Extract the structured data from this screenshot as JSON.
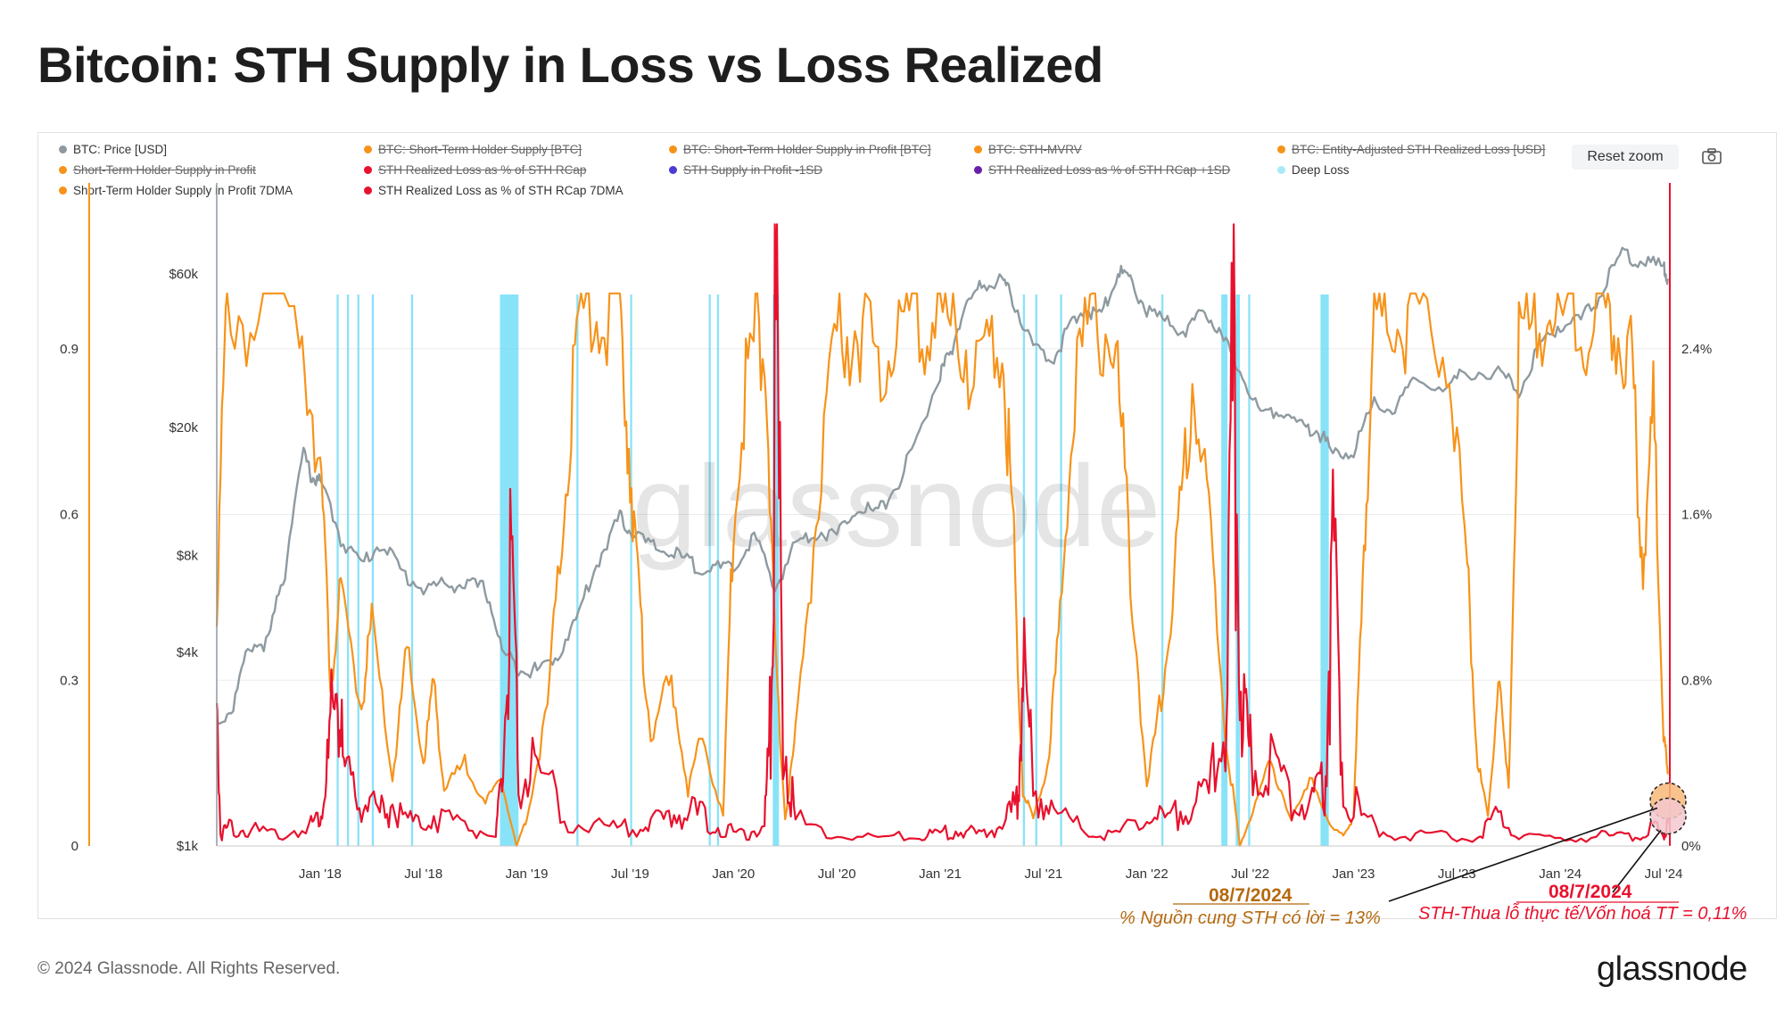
{
  "title": "Bitcoin: STH Supply in Loss vs Loss Realized",
  "reset_label": "Reset zoom",
  "footer": "© 2024 Glassnode. All Rights Reserved.",
  "brand": "glassnode",
  "watermark": "glassnode",
  "colors": {
    "price": "#8e9aa0",
    "orange": "#f7931a",
    "red": "#e8112d",
    "cyan": "#62d9f5",
    "blue": "#4b3bd6",
    "purple": "#6a1fa8",
    "deep": "#a8eafa"
  },
  "legend": [
    {
      "label": "BTC: Price [USD]",
      "color": "#8e9aa0",
      "off": false
    },
    {
      "label": "BTC: Short-Term Holder Supply [BTC]",
      "color": "#f7931a",
      "off": true
    },
    {
      "label": "BTC: Short-Term Holder Supply in Profit [BTC]",
      "color": "#f7931a",
      "off": true
    },
    {
      "label": "BTC: STH-MVRV",
      "color": "#f7931a",
      "off": true
    },
    {
      "label": "BTC: Entity-Adjusted STH Realized Loss [USD]",
      "color": "#f7931a",
      "off": true
    },
    {
      "label": "Short-Term Holder Supply in Profit",
      "color": "#f7931a",
      "off": true
    },
    {
      "label": "STH Realized Loss as % of STH RCap",
      "color": "#e8112d",
      "off": true
    },
    {
      "label": "STH Supply in Profit -1SD",
      "color": "#4b3bd6",
      "off": true
    },
    {
      "label": "STH Realized Loss as % of STH RCap +1SD",
      "color": "#6a1fa8",
      "off": true
    },
    {
      "label": "Deep Loss",
      "color": "#a8eafa",
      "off": false
    },
    {
      "label": "Short-Term Holder Supply in Profit 7DMA",
      "color": "#f7931a",
      "off": false
    },
    {
      "label": "STH Realized Loss as % of STH RCap 7DMA",
      "color": "#e8112d",
      "off": false
    }
  ],
  "annotations": {
    "orange_date": "08/7/2024",
    "orange_text": "% Nguồn cung STH có lời = 13%",
    "red_date": "08/7/2024",
    "red_text": "STH-Thua lỗ thực tế/Vốn hoá TT = 0,11%"
  },
  "chart_data": {
    "type": "line",
    "x_start": 2017.5,
    "x_end": 2024.53,
    "x_ticks": [
      {
        "x": 2018.0,
        "label": "Jan '18"
      },
      {
        "x": 2018.5,
        "label": "Jul '18"
      },
      {
        "x": 2019.0,
        "label": "Jan '19"
      },
      {
        "x": 2019.5,
        "label": "Jul '19"
      },
      {
        "x": 2020.0,
        "label": "Jan '20"
      },
      {
        "x": 2020.5,
        "label": "Jul '20"
      },
      {
        "x": 2021.0,
        "label": "Jan '21"
      },
      {
        "x": 2021.5,
        "label": "Jul '21"
      },
      {
        "x": 2022.0,
        "label": "Jan '22"
      },
      {
        "x": 2022.5,
        "label": "Jul '22"
      },
      {
        "x": 2023.0,
        "label": "Jan '23"
      },
      {
        "x": 2023.5,
        "label": "Jul '23"
      },
      {
        "x": 2024.0,
        "label": "Jan '24"
      },
      {
        "x": 2024.5,
        "label": "Jul '24"
      }
    ],
    "price_axis": {
      "scale": "log",
      "range": [
        1000,
        115000
      ],
      "ticks": [
        {
          "v": 1000,
          "label": "$1k"
        },
        {
          "v": 4000,
          "label": "$4k"
        },
        {
          "v": 8000,
          "label": "$8k"
        },
        {
          "v": 20000,
          "label": "$20k"
        },
        {
          "v": 60000,
          "label": "$60k"
        }
      ]
    },
    "left_axis": {
      "range": [
        0,
        1.2
      ],
      "ticks": [
        {
          "v": 0,
          "label": "0"
        },
        {
          "v": 0.3,
          "label": "0.3"
        },
        {
          "v": 0.6,
          "label": "0.6"
        },
        {
          "v": 0.9,
          "label": "0.9"
        }
      ]
    },
    "right_axis": {
      "range": [
        0,
        3.2
      ],
      "ticks": [
        {
          "v": 0,
          "label": "0%"
        },
        {
          "v": 0.8,
          "label": "0.8%"
        },
        {
          "v": 1.6,
          "label": "1.6%"
        },
        {
          "v": 2.4,
          "label": "2.4%"
        }
      ]
    },
    "series": [
      {
        "name": "BTC: Price [USD]",
        "axis": "price",
        "x": [
          2017.5,
          2017.58,
          2017.66,
          2017.75,
          2017.83,
          2017.92,
          2017.96,
          2018.0,
          2018.1,
          2018.2,
          2018.3,
          2018.4,
          2018.5,
          2018.6,
          2018.7,
          2018.8,
          2018.88,
          2018.96,
          2019.05,
          2019.15,
          2019.25,
          2019.35,
          2019.45,
          2019.5,
          2019.6,
          2019.7,
          2019.8,
          2019.9,
          2020.0,
          2020.1,
          2020.2,
          2020.3,
          2020.4,
          2020.5,
          2020.6,
          2020.7,
          2020.8,
          2020.9,
          2021.0,
          2021.05,
          2021.12,
          2021.2,
          2021.3,
          2021.35,
          2021.45,
          2021.55,
          2021.62,
          2021.7,
          2021.78,
          2021.86,
          2021.92,
          2022.0,
          2022.1,
          2022.2,
          2022.28,
          2022.36,
          2022.45,
          2022.55,
          2022.65,
          2022.75,
          2022.83,
          2022.9,
          2023.0,
          2023.1,
          2023.2,
          2023.3,
          2023.45,
          2023.55,
          2023.7,
          2023.8,
          2023.9,
          2024.0,
          2024.1,
          2024.2,
          2024.3,
          2024.4,
          2024.5,
          2024.52
        ],
        "y": [
          2400,
          2700,
          4200,
          4300,
          7000,
          16500,
          14000,
          13500,
          9000,
          7500,
          8800,
          7000,
          6300,
          6500,
          6500,
          6300,
          4000,
          3600,
          3500,
          3900,
          5200,
          7800,
          10500,
          9600,
          8500,
          8200,
          7500,
          7300,
          7200,
          9200,
          6200,
          8700,
          9500,
          9200,
          11500,
          10800,
          13500,
          19000,
          29000,
          34000,
          47000,
          55000,
          58000,
          50000,
          35000,
          33000,
          40000,
          47000,
          44000,
          61000,
          57000,
          46000,
          42000,
          40000,
          46000,
          38000,
          30000,
          22000,
          23000,
          20000,
          19500,
          16500,
          17000,
          23500,
          22500,
          28000,
          26500,
          30000,
          29500,
          26000,
          35000,
          42000,
          43000,
          52000,
          70000,
          65000,
          63000,
          58000
        ]
      },
      {
        "name": "Short-Term Holder Supply in Profit 7DMA",
        "axis": "left",
        "x": [
          2017.5,
          2017.55,
          2017.7,
          2017.9,
          2018.0,
          2018.05,
          2018.1,
          2018.2,
          2018.25,
          2018.35,
          2018.42,
          2018.5,
          2018.55,
          2018.6,
          2018.7,
          2018.8,
          2018.88,
          2018.95,
          2019.0,
          2019.1,
          2019.18,
          2019.25,
          2019.35,
          2019.45,
          2019.5,
          2019.55,
          2019.6,
          2019.7,
          2019.78,
          2019.85,
          2019.95,
          2020.0,
          2020.08,
          2020.15,
          2020.2,
          2020.25,
          2020.3,
          2020.4,
          2020.5,
          2020.6,
          2020.7,
          2020.8,
          2020.9,
          2021.0,
          2021.1,
          2021.2,
          2021.3,
          2021.35,
          2021.4,
          2021.45,
          2021.52,
          2021.58,
          2021.65,
          2021.75,
          2021.85,
          2021.92,
          2022.0,
          2022.08,
          2022.15,
          2022.22,
          2022.3,
          2022.38,
          2022.45,
          2022.5,
          2022.6,
          2022.7,
          2022.8,
          2022.9,
          2022.95,
          2023.0,
          2023.05,
          2023.1,
          2023.2,
          2023.3,
          2023.45,
          2023.55,
          2023.6,
          2023.65,
          2023.7,
          2023.75,
          2023.8,
          2023.9,
          2024.0,
          2024.1,
          2024.2,
          2024.28,
          2024.35,
          2024.4,
          2024.45,
          2024.5,
          2024.52
        ],
        "y": [
          0.45,
          0.98,
          0.95,
          0.97,
          0.7,
          0.3,
          0.45,
          0.25,
          0.4,
          0.12,
          0.35,
          0.15,
          0.3,
          0.1,
          0.15,
          0.08,
          0.12,
          0.0,
          0.05,
          0.25,
          0.6,
          0.95,
          0.97,
          0.96,
          0.7,
          0.4,
          0.2,
          0.3,
          0.1,
          0.2,
          0.05,
          0.6,
          0.9,
          0.95,
          0.35,
          0.05,
          0.2,
          0.6,
          0.9,
          0.95,
          0.85,
          0.96,
          0.97,
          0.96,
          0.92,
          0.85,
          0.9,
          0.6,
          0.1,
          0.05,
          0.15,
          0.4,
          0.85,
          0.97,
          0.9,
          0.5,
          0.1,
          0.3,
          0.55,
          0.85,
          0.6,
          0.2,
          0.0,
          0.05,
          0.15,
          0.05,
          0.12,
          0.03,
          0.02,
          0.05,
          0.55,
          0.95,
          0.97,
          0.95,
          0.92,
          0.5,
          0.15,
          0.05,
          0.3,
          0.1,
          0.9,
          0.97,
          0.95,
          0.93,
          0.98,
          0.95,
          0.85,
          0.5,
          0.8,
          0.2,
          0.13
        ]
      },
      {
        "name": "STH Realized Loss as % of STH RCap 7DMA",
        "axis": "right",
        "x": [
          2017.5,
          2017.52,
          2017.56,
          2017.65,
          2017.8,
          2017.95,
          2018.0,
          2018.04,
          2018.08,
          2018.12,
          2018.2,
          2018.28,
          2018.35,
          2018.45,
          2018.55,
          2018.7,
          2018.85,
          2018.88,
          2018.92,
          2018.96,
          2019.05,
          2019.2,
          2019.4,
          2019.55,
          2019.65,
          2019.75,
          2019.85,
          2019.95,
          2020.05,
          2020.15,
          2020.18,
          2020.2,
          2020.24,
          2020.3,
          2020.5,
          2020.7,
          2020.9,
          2021.0,
          2021.1,
          2021.2,
          2021.3,
          2021.37,
          2021.4,
          2021.45,
          2021.55,
          2021.7,
          2021.85,
          2022.0,
          2022.1,
          2022.2,
          2022.3,
          2022.38,
          2022.42,
          2022.46,
          2022.5,
          2022.6,
          2022.7,
          2022.8,
          2022.86,
          2022.9,
          2022.95,
          2023.05,
          2023.2,
          2023.4,
          2023.6,
          2023.7,
          2023.8,
          2024.0,
          2024.2,
          2024.35,
          2024.45,
          2024.5,
          2024.52
        ],
        "y": [
          0.6,
          0.05,
          0.1,
          0.08,
          0.05,
          0.1,
          0.15,
          0.4,
          0.8,
          0.3,
          0.25,
          0.15,
          0.2,
          0.1,
          0.15,
          0.1,
          0.05,
          0.3,
          1.2,
          0.4,
          0.35,
          0.12,
          0.08,
          0.1,
          0.12,
          0.18,
          0.14,
          0.08,
          0.05,
          0.1,
          0.6,
          2.7,
          0.6,
          0.12,
          0.05,
          0.04,
          0.05,
          0.06,
          0.08,
          0.05,
          0.1,
          0.2,
          0.85,
          0.3,
          0.15,
          0.08,
          0.05,
          0.15,
          0.12,
          0.2,
          0.25,
          0.6,
          2.25,
          0.6,
          0.45,
          0.35,
          0.25,
          0.2,
          0.3,
          1.45,
          0.3,
          0.12,
          0.06,
          0.05,
          0.04,
          0.15,
          0.05,
          0.03,
          0.05,
          0.04,
          0.1,
          0.05,
          0.11
        ]
      }
    ],
    "deep_loss_bands": [
      [
        2018.08,
        2018.09
      ],
      [
        2018.13,
        2018.14
      ],
      [
        2018.18,
        2018.19
      ],
      [
        2018.25,
        2018.26
      ],
      [
        2018.44,
        2018.45
      ],
      [
        2018.87,
        2018.96
      ],
      [
        2019.24,
        2019.25
      ],
      [
        2019.5,
        2019.51
      ],
      [
        2019.88,
        2019.89
      ],
      [
        2019.92,
        2019.93
      ],
      [
        2020.19,
        2020.22
      ],
      [
        2021.4,
        2021.41
      ],
      [
        2021.46,
        2021.47
      ],
      [
        2021.58,
        2021.59
      ],
      [
        2022.07,
        2022.08
      ],
      [
        2022.36,
        2022.39
      ],
      [
        2022.43,
        2022.45
      ],
      [
        2022.49,
        2022.5
      ],
      [
        2022.84,
        2022.88
      ]
    ]
  }
}
